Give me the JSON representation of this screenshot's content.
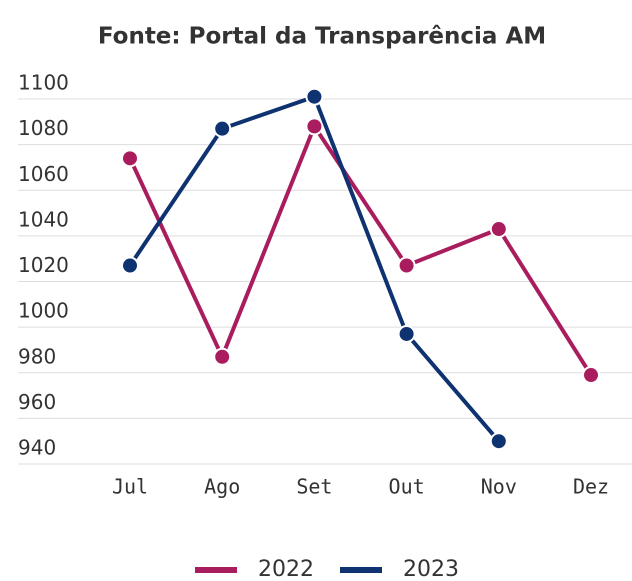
{
  "chart_data": {
    "type": "line",
    "title": "Fonte: Portal da Transparência AM",
    "categories": [
      "Jul",
      "Ago",
      "Set",
      "Out",
      "Nov",
      "Dez"
    ],
    "series": [
      {
        "name": "2022",
        "color": "#a91d5e",
        "values": [
          1074,
          987,
          1088,
          1027,
          1043,
          979
        ]
      },
      {
        "name": "2023",
        "color": "#0f3270",
        "values": [
          1027,
          1087,
          1101,
          997,
          950,
          null
        ]
      }
    ],
    "ylim": [
      940,
      1100
    ],
    "yticks": [
      940,
      960,
      980,
      1000,
      1020,
      1040,
      1060,
      1080,
      1100
    ],
    "grid": true
  }
}
